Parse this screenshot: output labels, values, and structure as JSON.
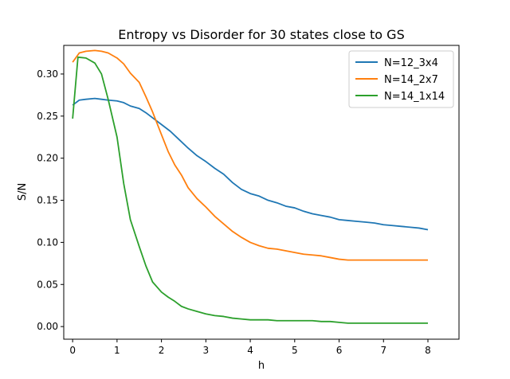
{
  "chart_data": {
    "type": "line",
    "title": "Entropy vs Disorder for 30 states close to GS",
    "xlabel": "h",
    "ylabel": "S/N",
    "xlim": [
      -0.2,
      8.7
    ],
    "ylim": [
      -0.015,
      0.334
    ],
    "xticks": [
      0,
      1,
      2,
      3,
      4,
      5,
      6,
      7,
      8
    ],
    "yticks": [
      0.0,
      0.05,
      0.1,
      0.15,
      0.2,
      0.25,
      0.3
    ],
    "ytick_labels": [
      "0.00",
      "0.05",
      "0.10",
      "0.15",
      "0.20",
      "0.25",
      "0.30"
    ],
    "grid": false,
    "legend_position": "top-right",
    "series": [
      {
        "name": "N=12_3x4",
        "color": "#1f77b4",
        "x": [
          0,
          0.15,
          0.3,
          0.5,
          0.65,
          0.8,
          1.0,
          1.15,
          1.3,
          1.5,
          1.65,
          1.8,
          2.0,
          2.2,
          2.4,
          2.6,
          2.8,
          3.0,
          3.2,
          3.4,
          3.6,
          3.8,
          4.0,
          4.2,
          4.4,
          4.6,
          4.8,
          5.0,
          5.2,
          5.4,
          5.6,
          5.8,
          6.0,
          6.2,
          6.4,
          6.6,
          6.8,
          7.0,
          7.2,
          7.4,
          7.6,
          7.8,
          8.0
        ],
        "y": [
          0.263,
          0.269,
          0.27,
          0.271,
          0.27,
          0.269,
          0.268,
          0.266,
          0.262,
          0.259,
          0.254,
          0.248,
          0.24,
          0.232,
          0.222,
          0.212,
          0.203,
          0.196,
          0.188,
          0.181,
          0.171,
          0.163,
          0.158,
          0.155,
          0.15,
          0.147,
          0.143,
          0.141,
          0.137,
          0.134,
          0.132,
          0.13,
          0.127,
          0.126,
          0.125,
          0.124,
          0.123,
          0.121,
          0.12,
          0.119,
          0.118,
          0.117,
          0.115
        ]
      },
      {
        "name": "N=14_2x7",
        "color": "#ff7f0e",
        "x": [
          0,
          0.15,
          0.3,
          0.5,
          0.65,
          0.8,
          1.0,
          1.15,
          1.3,
          1.5,
          1.65,
          1.8,
          2.0,
          2.15,
          2.3,
          2.45,
          2.6,
          2.8,
          3.0,
          3.2,
          3.4,
          3.6,
          3.8,
          4.0,
          4.2,
          4.4,
          4.6,
          4.8,
          5.0,
          5.2,
          5.4,
          5.6,
          5.8,
          6.0,
          6.2,
          6.4,
          6.6,
          6.8,
          7.0,
          7.2,
          7.4,
          7.6,
          7.8,
          8.0
        ],
        "y": [
          0.314,
          0.325,
          0.327,
          0.328,
          0.327,
          0.325,
          0.319,
          0.312,
          0.301,
          0.29,
          0.273,
          0.255,
          0.228,
          0.208,
          0.192,
          0.18,
          0.165,
          0.152,
          0.142,
          0.131,
          0.122,
          0.113,
          0.106,
          0.1,
          0.096,
          0.093,
          0.092,
          0.09,
          0.088,
          0.086,
          0.085,
          0.084,
          0.082,
          0.08,
          0.079,
          0.079,
          0.079,
          0.079,
          0.079,
          0.079,
          0.079,
          0.079,
          0.079,
          0.079
        ]
      },
      {
        "name": "N=14_1x14",
        "color": "#2ca02c",
        "x": [
          0,
          0.12,
          0.3,
          0.5,
          0.65,
          0.8,
          1.0,
          1.15,
          1.3,
          1.5,
          1.65,
          1.8,
          2.0,
          2.15,
          2.3,
          2.45,
          2.6,
          2.8,
          3.0,
          3.2,
          3.4,
          3.6,
          3.8,
          4.0,
          4.2,
          4.4,
          4.6,
          4.8,
          5.0,
          5.2,
          5.4,
          5.6,
          5.8,
          6.0,
          6.2,
          6.4,
          6.6,
          6.8,
          7.0,
          7.2,
          7.4,
          7.6,
          7.8,
          8.0
        ],
        "y": [
          0.247,
          0.32,
          0.319,
          0.313,
          0.3,
          0.27,
          0.225,
          0.17,
          0.127,
          0.095,
          0.072,
          0.053,
          0.041,
          0.035,
          0.03,
          0.024,
          0.021,
          0.018,
          0.015,
          0.013,
          0.012,
          0.01,
          0.009,
          0.008,
          0.008,
          0.008,
          0.007,
          0.007,
          0.007,
          0.007,
          0.007,
          0.006,
          0.006,
          0.005,
          0.004,
          0.004,
          0.004,
          0.004,
          0.004,
          0.004,
          0.004,
          0.004,
          0.004,
          0.004
        ]
      }
    ]
  }
}
